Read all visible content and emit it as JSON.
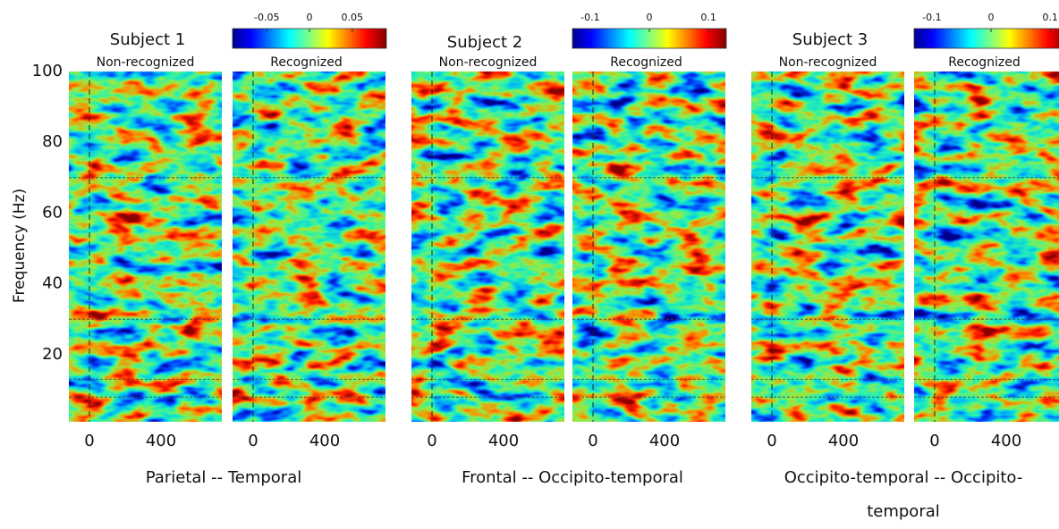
{
  "figure": {
    "y_axis": {
      "label": "Frequency (Hz)",
      "lim": [
        0,
        100
      ],
      "ticks": [
        20,
        40,
        60,
        80,
        100
      ]
    },
    "x_axis": {
      "lim": [
        -115,
        740
      ],
      "ticks": [
        0,
        400
      ]
    },
    "time_markers": [
      0
    ],
    "frequency_markers": [
      8,
      13,
      30,
      70
    ],
    "groups": [
      {
        "title": "Subject 1",
        "panels": [
          "Non-recognized",
          "Recognized"
        ],
        "colorbar": {
          "lim": [
            -0.09,
            0.09
          ],
          "ticks": [
            -0.05,
            0,
            0.05
          ]
        },
        "caption": "Parietal -- Temporal"
      },
      {
        "title": "Subject 2",
        "panels": [
          "Non-recognized",
          "Recognized"
        ],
        "colorbar": {
          "lim": [
            -0.13,
            0.13
          ],
          "ticks": [
            -0.1,
            0,
            0.1
          ]
        },
        "caption": "Frontal -- Occipito-temporal"
      },
      {
        "title": "Subject 3",
        "panels": [
          "Non-recognized",
          "Recognized"
        ],
        "colorbar": {
          "lim": [
            -0.13,
            0.13
          ],
          "ticks": [
            -0.1,
            0,
            0.1
          ]
        },
        "caption": "Occipito-temporal -- Occipito-temporal"
      }
    ]
  }
}
